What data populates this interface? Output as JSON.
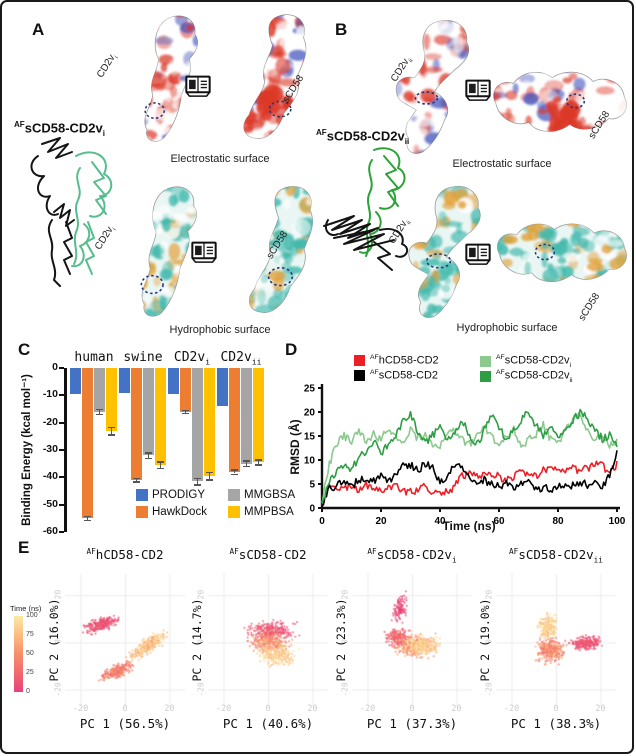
{
  "figure": {
    "panels": {
      "a": "A",
      "b": "B",
      "c": "C",
      "d": "D",
      "e": "E"
    },
    "panel_a": {
      "complex_label": {
        "sup": "AF",
        "base": "sCD58-CD2v",
        "sub": "i"
      },
      "mol_left": {
        "base": "CD2v",
        "sub": "i"
      },
      "mol_right": "sCD58",
      "electrostatic_caption": "Electrostatic surface",
      "hydrophobic_caption": "Hydrophobic surface"
    },
    "panel_b": {
      "complex_label": {
        "sup": "AF",
        "base": "sCD58-CD2v",
        "sub": "ii"
      },
      "mol_left": {
        "base": "CD2v",
        "sub": "ii"
      },
      "mol_right": "sCD58",
      "electrostatic_caption": "Electrostatic surface",
      "hydrophobic_caption": "Hydrophobic surface"
    }
  },
  "icons": {
    "book": "open-book"
  },
  "colors": {
    "electro_red": "#DC3828",
    "electro_blue": "#4A5EC0",
    "hydro_teal": "#3FB8AC",
    "hydro_orange": "#E3A23A",
    "annotation_dotted": "#24357D",
    "ribbon_black": "#141414",
    "ribbon_a_green": "#57BD8D",
    "ribbon_b_green": "#2BA337",
    "surface_outline": "#9a9a9a"
  },
  "chart_data": [
    {
      "type": "bar",
      "ylabel": "Binding Energy (kcal mol⁻¹)",
      "ylim": [
        0,
        -60
      ],
      "yticks": [
        0,
        -10,
        -20,
        -30,
        -40,
        -50,
        -60
      ],
      "categories": [
        {
          "base": "human",
          "sub": ""
        },
        {
          "base": "swine",
          "sub": ""
        },
        {
          "base": "CD2v",
          "sub": "i"
        },
        {
          "base": "CD2v",
          "sub": "ii"
        }
      ],
      "series": [
        {
          "name": "PRODIGY",
          "color": "#4472C4",
          "values": [
            -9.5,
            -9,
            -9.5,
            -14
          ],
          "errors": [
            0,
            0,
            0,
            0
          ]
        },
        {
          "name": "HawkDock",
          "color": "#ED7D31",
          "values": [
            -55,
            -41,
            -16,
            -38
          ],
          "errors": [
            0.5,
            0.4,
            0.4,
            0.6
          ]
        },
        {
          "name": "MMGBSA",
          "color": "#A5A5A5",
          "values": [
            -16,
            -32,
            -41.5,
            -35
          ],
          "errors": [
            0.8,
            0.8,
            1.0,
            0.8
          ]
        },
        {
          "name": "MMPBSA",
          "color": "#FFC000",
          "values": [
            -23,
            -35.5,
            -39.5,
            -34.5
          ],
          "errors": [
            1.2,
            1.0,
            1.2,
            0.8
          ]
        }
      ],
      "legend_order_cols": [
        [
          0,
          1
        ],
        [
          2,
          3
        ]
      ]
    },
    {
      "type": "line",
      "xlabel": "Time (ns)",
      "ylabel": "RMSD (Å)",
      "xlim": [
        0,
        100
      ],
      "ylim": [
        0,
        25
      ],
      "xticks": [
        0,
        20,
        40,
        60,
        80,
        100
      ],
      "yticks": [
        0,
        5,
        10,
        15,
        20,
        25
      ],
      "x_step_ns": 2.5,
      "series": [
        {
          "name": {
            "sup": "AF",
            "base": "hCD58-CD2",
            "sub": ""
          },
          "color": "#EC1F26",
          "values": [
            0.5,
            4.3,
            4.6,
            4.0,
            4.4,
            3.9,
            4.6,
            4.3,
            3.6,
            4.1,
            4.6,
            3.7,
            3.3,
            4.0,
            4.7,
            3.4,
            2.9,
            3.3,
            4.6,
            6.8,
            7.1,
            6.3,
            6.9,
            7.3,
            6.4,
            6.1,
            6.7,
            7.6,
            7.1,
            6.4,
            7.7,
            8.1,
            7.5,
            7.9,
            8.6,
            7.7,
            8.2,
            9.4,
            8.7,
            7.6,
            9.2
          ]
        },
        {
          "name": {
            "sup": "AF",
            "base": "sCD58-CD2",
            "sub": ""
          },
          "color": "#000000",
          "values": [
            0.5,
            4.0,
            4.6,
            5.3,
            4.7,
            5.6,
            6.3,
            5.7,
            6.6,
            5.5,
            6.9,
            8.6,
            9.1,
            7.9,
            9.4,
            8.7,
            5.3,
            6.1,
            9.2,
            8.3,
            6.4,
            5.6,
            5.9,
            4.9,
            4.6,
            5.3,
            4.5,
            4.9,
            5.6,
            4.3,
            4.1,
            3.9,
            4.6,
            5.1,
            4.7,
            5.4,
            4.9,
            5.3,
            4.6,
            6.7,
            11.6
          ]
        },
        {
          "name": {
            "sup": "AF",
            "base": "sCD58-CD2v",
            "sub": "i"
          },
          "color": "#8CC98F",
          "values": [
            1.0,
            9.0,
            13.5,
            15.0,
            14.0,
            16.2,
            13.6,
            15.4,
            14.2,
            16.6,
            15.1,
            13.2,
            16.1,
            14.4,
            15.6,
            13.4,
            12.6,
            15.2,
            16.3,
            14.1,
            13.2,
            15.6,
            17.1,
            14.6,
            13.4,
            15.1,
            16.4,
            13.1,
            14.2,
            15.4,
            17.6,
            14.2,
            13.6,
            16.1,
            18.2,
            19.4,
            16.2,
            14.6,
            15.4,
            13.2,
            13.6
          ]
        },
        {
          "name": {
            "sup": "AF",
            "base": "sCD58-CD2v",
            "sub": "ii"
          },
          "color": "#2E9E44",
          "values": [
            1.0,
            5.5,
            7.6,
            9.2,
            8.1,
            10.2,
            12.1,
            14.2,
            11.2,
            13.1,
            15.2,
            18.1,
            19.8,
            16.1,
            13.2,
            15.1,
            17.2,
            14.1,
            16.2,
            18.1,
            15.2,
            13.1,
            16.1,
            19.2,
            17.1,
            14.2,
            16.2,
            18.4,
            20.1,
            17.2,
            15.1,
            17.1,
            14.2,
            16.1,
            18.1,
            19.9,
            18.8,
            16.2,
            14.4,
            15.2,
            13.4
          ]
        }
      ],
      "legend_order_cols": [
        [
          0,
          1
        ],
        [
          2,
          3
        ]
      ]
    },
    {
      "type": "scatter",
      "title": {
        "sup": "AF",
        "base": "hCD58-CD2",
        "sub": ""
      },
      "xlabel": "PC 1 (56.5%)",
      "ylabel": "PC 2 (16.0%)",
      "xticks": [
        -20,
        0,
        20
      ],
      "yticks": [
        -20,
        0,
        20
      ],
      "xlim": [
        -27,
        27
      ],
      "ylim": [
        -27,
        29
      ],
      "clusters": [
        {
          "cx": -11,
          "cy": 8,
          "sx": 8,
          "sy": 2.6,
          "rot": 15,
          "n": 260,
          "t0": 0,
          "t1": 25
        },
        {
          "cx": -4,
          "cy": -12,
          "sx": 7,
          "sy": 2.8,
          "rot": 25,
          "n": 240,
          "t0": 25,
          "t1": 55
        },
        {
          "cx": 10,
          "cy": -1,
          "sx": 10,
          "sy": 3,
          "rot": 33,
          "n": 300,
          "t0": 55,
          "t1": 100
        }
      ],
      "colorbar": {
        "label": "Time (ns)",
        "ticks": [
          0,
          25,
          50,
          75,
          100
        ],
        "stops": [
          "#E8417C",
          "#F0696F",
          "#F78F6B",
          "#FBBD81",
          "#FCE9A6"
        ]
      }
    },
    {
      "type": "scatter",
      "title": {
        "sup": "AF",
        "base": "sCD58-CD2",
        "sub": ""
      },
      "xlabel": "PC 1 (40.6%)",
      "ylabel": "PC 2 (14.7%)",
      "xticks": [
        -20,
        0,
        20
      ],
      "yticks": [
        -20,
        0,
        20
      ],
      "xlim": [
        -27,
        27
      ],
      "ylim": [
        -27,
        29
      ],
      "clusters": [
        {
          "cx": 1,
          "cy": 5,
          "sx": 10,
          "sy": 4,
          "rot": 5,
          "n": 280,
          "t0": 0,
          "t1": 30
        },
        {
          "cx": 0,
          "cy": 0,
          "sx": 9,
          "sy": 4.5,
          "rot": 0,
          "n": 250,
          "t0": 30,
          "t1": 70
        },
        {
          "cx": 4,
          "cy": -5,
          "sx": 8,
          "sy": 4.5,
          "rot": -5,
          "n": 250,
          "t0": 70,
          "t1": 100
        }
      ]
    },
    {
      "type": "scatter",
      "title": {
        "sup": "AF",
        "base": "sCD58-CD2v",
        "sub": "i"
      },
      "xlabel": "PC 1 (37.3%)",
      "ylabel": "PC 2 (23.3%)",
      "xticks": [
        -20,
        0,
        20
      ],
      "yticks": [
        -20,
        0,
        20
      ],
      "xlim": [
        -27,
        27
      ],
      "ylim": [
        -27,
        29
      ],
      "clusters": [
        {
          "cx": -6,
          "cy": 15,
          "sx": 3,
          "sy": 6.5,
          "rot": -10,
          "n": 110,
          "t0": 0,
          "t1": 12
        },
        {
          "cx": -7,
          "cy": 2,
          "sx": 5,
          "sy": 4,
          "rot": 0,
          "n": 200,
          "t0": 12,
          "t1": 35
        },
        {
          "cx": 1,
          "cy": -1,
          "sx": 8.5,
          "sy": 4.5,
          "rot": 0,
          "n": 320,
          "t0": 35,
          "t1": 75
        },
        {
          "cx": 4,
          "cy": -1,
          "sx": 8,
          "sy": 4,
          "rot": 0,
          "n": 220,
          "t0": 75,
          "t1": 100
        }
      ]
    },
    {
      "type": "scatter",
      "title": {
        "sup": "AF",
        "base": "sCD58-CD2v",
        "sub": "ii"
      },
      "xlabel": "PC 1 (38.3%)",
      "ylabel": "PC 2 (19.0%)",
      "xticks": [
        -20,
        0,
        20
      ],
      "yticks": [
        -20,
        0,
        20
      ],
      "xlim": [
        -27,
        27
      ],
      "ylim": [
        -27,
        29
      ],
      "clusters": [
        {
          "cx": 13,
          "cy": 0,
          "sx": 7,
          "sy": 2.8,
          "rot": 5,
          "n": 230,
          "t0": 0,
          "t1": 25
        },
        {
          "cx": -3,
          "cy": -3,
          "sx": 6,
          "sy": 5,
          "rot": 0,
          "n": 320,
          "t0": 25,
          "t1": 70
        },
        {
          "cx": -4,
          "cy": 7,
          "sx": 4,
          "sy": 5,
          "rot": 0,
          "n": 210,
          "t0": 70,
          "t1": 100
        }
      ]
    }
  ]
}
